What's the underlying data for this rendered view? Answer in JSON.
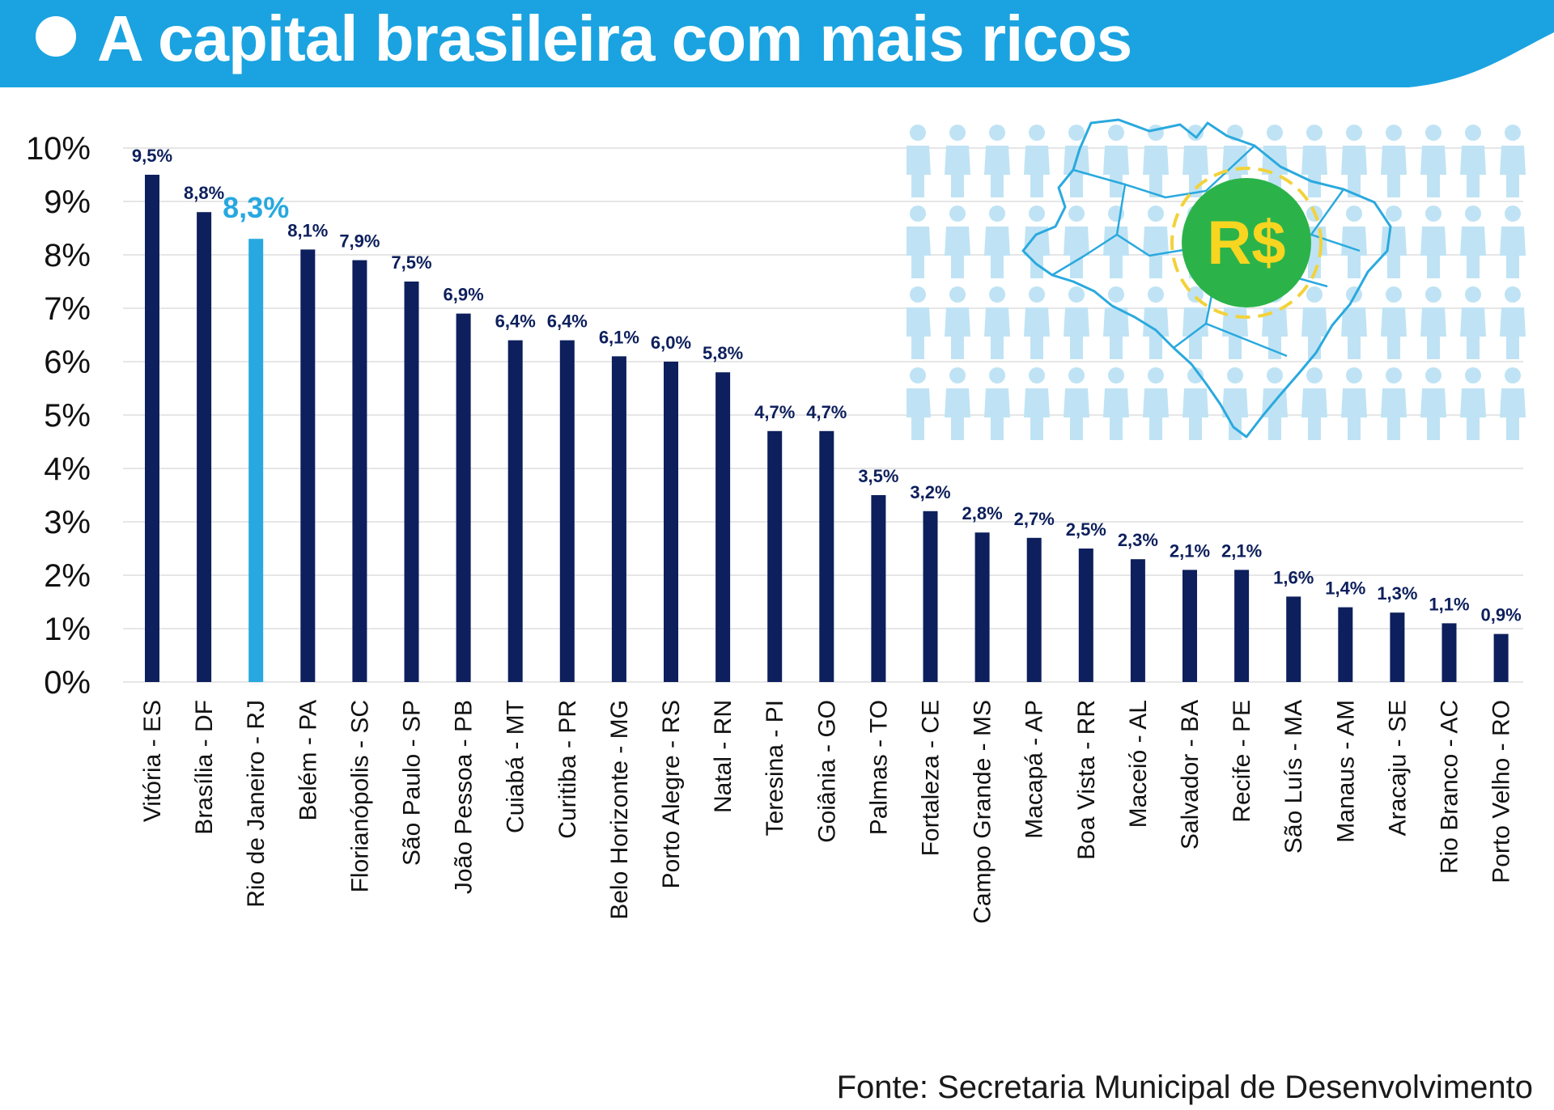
{
  "header": {
    "title": "A capital brasileira com mais ricos",
    "banner_color": "#1aa3e0"
  },
  "illustration": {
    "badge_text": "R$",
    "icons": [
      "people-icon",
      "brazil-map-icon",
      "money-badge-icon"
    ]
  },
  "source": "Fonte: Secretaria Municipal de Desenvolvimento",
  "colors": {
    "bar": "#0d1f5c",
    "highlight": "#27a8e0",
    "label": "#0d1f5c",
    "axis_text": "#111111",
    "grid": "#e6e6e6"
  },
  "chart_data": {
    "type": "bar",
    "title": "A capital brasileira com mais ricos",
    "xlabel": "",
    "ylabel": "",
    "ylim": [
      0,
      10
    ],
    "grid": true,
    "yticks": [
      "0%",
      "1%",
      "2%",
      "3%",
      "4%",
      "5%",
      "6%",
      "7%",
      "8%",
      "9%",
      "10%"
    ],
    "categories": [
      "Vitória - ES",
      "Brasília - DF",
      "Rio de Janeiro - RJ",
      "Belém - PA",
      "Florianópolis - SC",
      "São Paulo - SP",
      "João Pessoa - PB",
      "Cuiabá - MT",
      "Curitiba - PR",
      "Belo Horizonte - MG",
      "Porto Alegre - RS",
      "Natal - RN",
      "Teresina - PI",
      "Goiânia - GO",
      "Palmas - TO",
      "Fortaleza - CE",
      "Campo Grande - MS",
      "Macapá - AP",
      "Boa Vista - RR",
      "Maceió - AL",
      "Salvador - BA",
      "Recife - PE",
      "São Luís - MA",
      "Manaus - AM",
      "Aracaju - SE",
      "Rio Branco - AC",
      "Porto Velho - RO"
    ],
    "values": [
      9.5,
      8.8,
      8.3,
      8.1,
      7.9,
      7.5,
      6.9,
      6.4,
      6.4,
      6.1,
      6.0,
      5.8,
      4.7,
      4.7,
      3.5,
      3.2,
      2.8,
      2.7,
      2.5,
      2.3,
      2.1,
      2.1,
      1.6,
      1.4,
      1.3,
      1.1,
      0.9
    ],
    "labels": [
      "9,5%",
      "8,8%",
      "8,3%",
      "8,1%",
      "7,9%",
      "7,5%",
      "6,9%",
      "6,4%",
      "6,4%",
      "6,1%",
      "6,0%",
      "5,8%",
      "4,7%",
      "4,7%",
      "3,5%",
      "3,2%",
      "2,8%",
      "2,7%",
      "2,5%",
      "2,3%",
      "2,1%",
      "2,1%",
      "1,6%",
      "1,4%",
      "1,3%",
      "1,1%",
      "0,9%"
    ],
    "highlight_index": 2
  }
}
